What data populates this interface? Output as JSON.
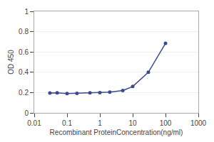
{
  "chart_data": {
    "type": "line",
    "x": [
      0.03,
      0.05,
      0.1,
      0.2,
      0.5,
      1,
      2,
      5,
      10,
      30,
      100
    ],
    "values": [
      0.195,
      0.198,
      0.19,
      0.193,
      0.198,
      0.2,
      0.205,
      0.22,
      0.26,
      0.4,
      0.685
    ],
    "color": "#3a4a8a",
    "marker": "circle",
    "xlabel": "Recombinant ProteinConcentration(ng/ml)",
    "ylabel": "OD 450",
    "log": "x",
    "xlim": [
      0.01,
      1000
    ],
    "ylim": [
      0,
      1
    ],
    "xticks": [
      0.01,
      0.1,
      1,
      10,
      100,
      1000
    ],
    "yticks": [
      0,
      0.2,
      0.4,
      0.6,
      0.8,
      1
    ],
    "grid": true
  }
}
